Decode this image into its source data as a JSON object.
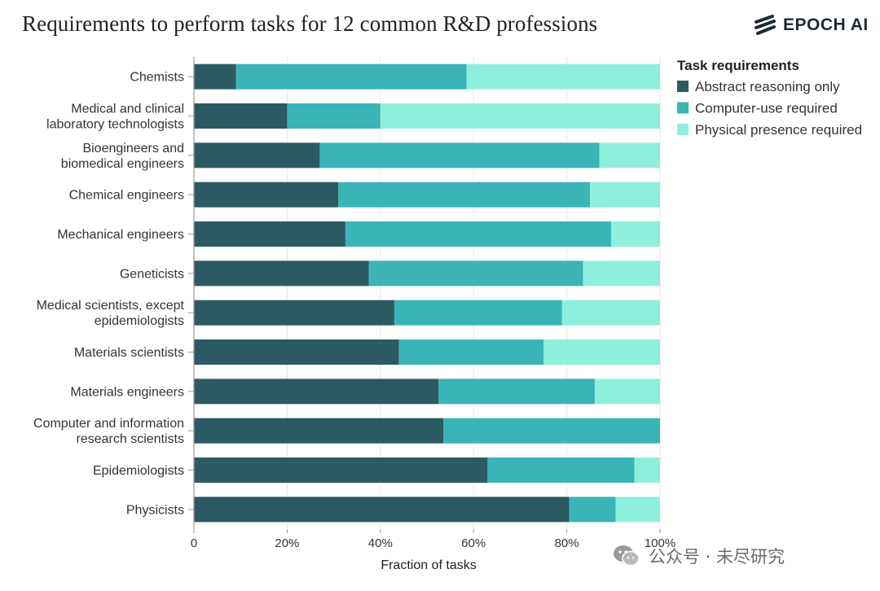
{
  "brand": {
    "name": "EPOCH AI",
    "logo_icon": "epoch-stripes-icon"
  },
  "watermark": {
    "text": "公众号 · 未尽研究",
    "icon": "wechat-icon"
  },
  "chart_data": {
    "type": "bar",
    "orientation": "horizontal",
    "stacked": true,
    "title": "Requirements to perform tasks for 12 common R&D professions",
    "xlabel": "Fraction of tasks",
    "ylabel": "",
    "xlim": [
      0,
      100
    ],
    "x_ticks": [
      "0",
      "20%",
      "40%",
      "60%",
      "80%",
      "100%"
    ],
    "grid": "vertical",
    "legend": {
      "title": "Task requirements",
      "placement": "right"
    },
    "categories": [
      [
        "Chemists"
      ],
      [
        "Medical and clinical",
        "laboratory technologists"
      ],
      [
        "Bioengineers and",
        "biomedical engineers"
      ],
      [
        "Chemical engineers"
      ],
      [
        "Mechanical engineers"
      ],
      [
        "Geneticists"
      ],
      [
        "Medical scientists, except",
        "epidemiologists"
      ],
      [
        "Materials scientists"
      ],
      [
        "Materials engineers"
      ],
      [
        "Computer and information",
        "research scientists"
      ],
      [
        "Epidemiologists"
      ],
      [
        "Physicists"
      ]
    ],
    "series": [
      {
        "name": "Abstract reasoning only",
        "color": "#2c5a63",
        "values": [
          9,
          20,
          27,
          31,
          32.5,
          37.5,
          43,
          44,
          52.5,
          53.5,
          63,
          80.5
        ]
      },
      {
        "name": "Computer-use required",
        "color": "#3ab4b7",
        "values": [
          49.5,
          20,
          60,
          54,
          57,
          46,
          36,
          31,
          33.5,
          46.5,
          31.5,
          10
        ]
      },
      {
        "name": "Physical presence required",
        "color": "#8ef0dc",
        "values": [
          41.5,
          60,
          13,
          15,
          10.5,
          16.5,
          21,
          25,
          14,
          0,
          5.5,
          9.5
        ]
      }
    ]
  }
}
